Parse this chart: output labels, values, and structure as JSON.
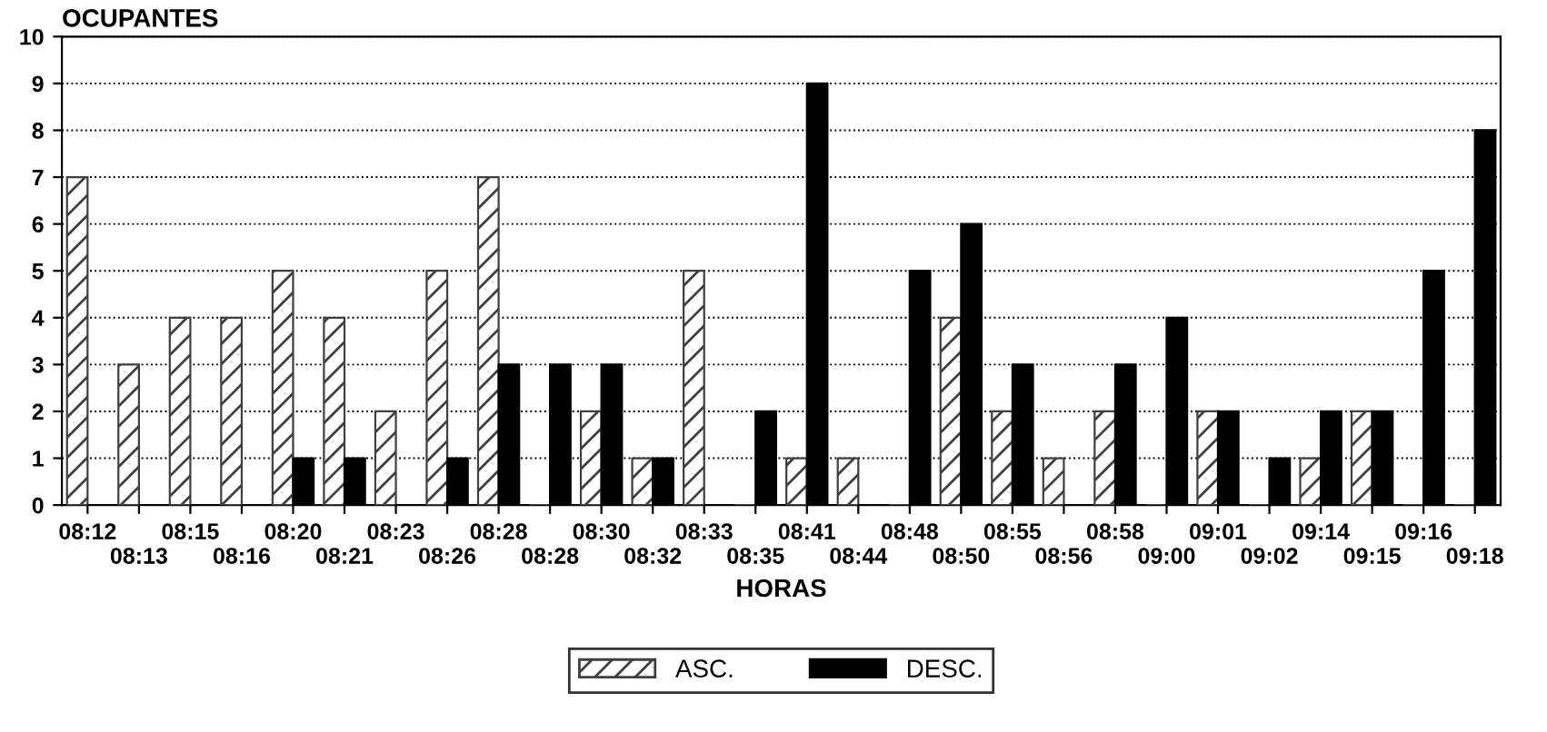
{
  "chart_data": {
    "type": "bar",
    "title": "OCUPANTES",
    "xlabel": "HORAS",
    "categories": [
      "08:12",
      "08:13",
      "08:15",
      "08:16",
      "08:20",
      "08:21",
      "08:23",
      "08:26",
      "08:28",
      "08:28",
      "08:30",
      "08:32",
      "08:33",
      "08:35",
      "08:41",
      "08:44",
      "08:48",
      "08:50",
      "08:55",
      "08:56",
      "08:58",
      "09:00",
      "09:01",
      "09:02",
      "09:14",
      "09:15",
      "09:16",
      "09:18"
    ],
    "series": [
      {
        "name": "ASC.",
        "color": "#404040",
        "values": [
          7,
          3,
          4,
          4,
          5,
          4,
          2,
          5,
          7,
          0,
          2,
          1,
          5,
          0,
          1,
          1,
          0,
          4,
          2,
          1,
          2,
          0,
          2,
          0,
          1,
          2,
          0,
          0
        ]
      },
      {
        "name": "DESC.",
        "color": "#000000",
        "values": [
          0,
          0,
          0,
          0,
          1,
          1,
          0,
          1,
          3,
          3,
          3,
          1,
          0,
          2,
          9,
          0,
          5,
          6,
          3,
          0,
          3,
          4,
          2,
          1,
          2,
          2,
          5,
          8
        ]
      }
    ],
    "ylim": [
      0,
      10
    ],
    "yticks": [
      0,
      1,
      2,
      3,
      4,
      5,
      6,
      7,
      8,
      9,
      10
    ],
    "grid": "y",
    "legend": "bottom"
  }
}
